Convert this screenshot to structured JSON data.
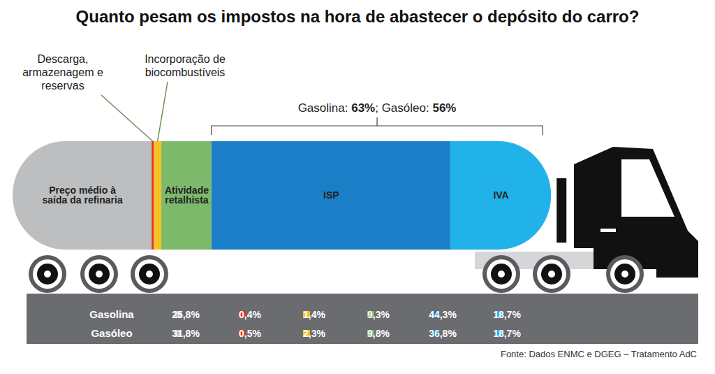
{
  "chart_data": {
    "type": "bar",
    "orientation": "horizontal",
    "stacked": true,
    "tick_labels": false,
    "title": "Quanto pesam os impostos na hora de abastecer o depósito do carro?",
    "categories": [
      "Preço médio à saída da refinaria",
      "Descarga, armazenagem e reservas",
      "Incorporação de biocombustíveis",
      "Atividade retalhista",
      "ISP",
      "IVA"
    ],
    "colors": [
      "#bcbec0",
      "#e2322b",
      "#f6c125",
      "#7cb96b",
      "#1b7fc7",
      "#22b2ea"
    ],
    "series": [
      {
        "name": "Gasolina",
        "values": [
          25.8,
          0.4,
          1.4,
          9.3,
          44.3,
          18.7
        ],
        "value_labels": [
          "25,8%",
          "0,4%",
          "1,4%",
          "9,3%",
          "44,3%",
          "18,7%"
        ]
      },
      {
        "name": "Gasóleo",
        "values": [
          31.8,
          0.5,
          2.3,
          9.8,
          36.8,
          18.7
        ],
        "value_labels": [
          "31,8%",
          "0,5%",
          "2,3%",
          "9,8%",
          "36,8%",
          "18,7%"
        ]
      }
    ],
    "xlim": [
      0,
      100
    ],
    "annotations": [
      {
        "text": "Gasolina: 63%; Gasóleo: 56%",
        "categories": [
          "ISP",
          "IVA"
        ]
      }
    ],
    "source": "Fonte: Dados ENMC e DGEG – Tratamento AdC"
  }
}
